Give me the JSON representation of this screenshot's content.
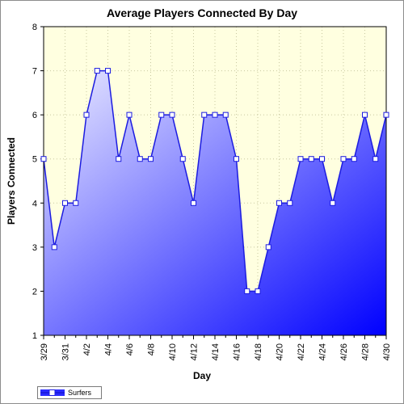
{
  "chart_data": {
    "type": "area",
    "title": "Average Players Connected By Day",
    "xlabel": "Day",
    "ylabel": "Players Connected",
    "ylim": [
      1,
      8
    ],
    "yticks": [
      1,
      2,
      3,
      4,
      5,
      6,
      7,
      8
    ],
    "grid": true,
    "legend_position": "bottom-left",
    "categories": [
      "3/29",
      "3/30",
      "3/31",
      "4/1",
      "4/2",
      "4/3",
      "4/4",
      "4/5",
      "4/6",
      "4/7",
      "4/8",
      "4/9",
      "4/10",
      "4/11",
      "4/12",
      "4/13",
      "4/14",
      "4/15",
      "4/16",
      "4/17",
      "4/18",
      "4/19",
      "4/20",
      "4/21",
      "4/22",
      "4/23",
      "4/24",
      "4/25",
      "4/26",
      "4/27",
      "4/28",
      "4/29",
      "4/30"
    ],
    "tick_labels": [
      "3/29",
      "3/31",
      "4/2",
      "4/4",
      "4/6",
      "4/8",
      "4/10",
      "4/12",
      "4/14",
      "4/16",
      "4/18",
      "4/20",
      "4/22",
      "4/24",
      "4/26",
      "4/28",
      "4/30"
    ],
    "series": [
      {
        "name": "Surfers",
        "values": [
          5,
          3,
          4,
          4,
          6,
          7,
          7,
          5,
          6,
          5,
          5,
          6,
          6,
          5,
          4,
          6,
          6,
          6,
          5,
          2,
          2,
          3,
          4,
          4,
          5,
          5,
          5,
          4,
          5,
          5,
          6,
          5,
          6
        ],
        "color": "#0000ff"
      }
    ],
    "colors": {
      "plot_background": "#ffffe0",
      "fill_light": "#e8e8ff",
      "fill_dark": "#0000ff",
      "line": "#1c1ce0",
      "grid": "#c8c8a0"
    }
  }
}
